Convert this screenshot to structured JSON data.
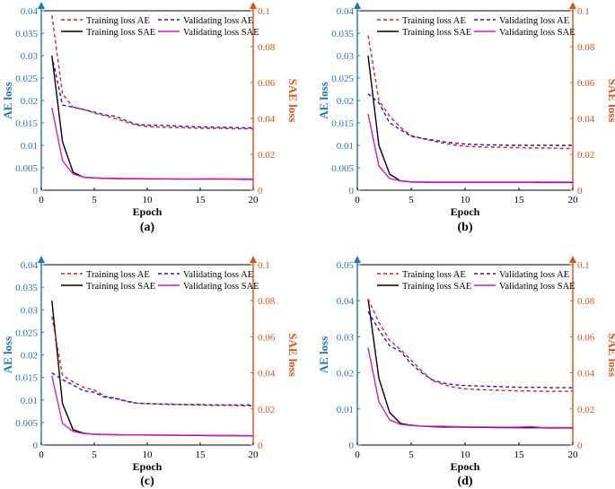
{
  "figure": {
    "colors": {
      "left_axis": "#1f77b4",
      "right_axis": "#d9541a",
      "train_ae": "#e41a1c",
      "val_ae": "#1f1fbf",
      "train_sae": "#000000",
      "val_sae": "#d01ad0"
    },
    "legend": {
      "train_ae": "Training loss AE",
      "val_ae": "Validating loss AE",
      "train_sae": "Training loss SAE",
      "val_sae": "Validating loss SAE"
    }
  },
  "chart_data": [
    {
      "type": "line",
      "caption": "(a)",
      "xlabel": "Epoch",
      "ylabel_left": "AE loss",
      "ylabel_right": "SAE loss",
      "xlim": [
        0,
        20
      ],
      "ylim_left": [
        0,
        0.04
      ],
      "ylim_right": [
        0,
        0.1
      ],
      "xticks": [
        "0",
        "5",
        "10",
        "15",
        "20"
      ],
      "yticks_left": [
        "0",
        "0.005",
        "0.01",
        "0.015",
        "0.02",
        "0.025",
        "0.03",
        "0.035",
        "0.04"
      ],
      "yticks_right": [
        "0",
        "0.02",
        "0.04",
        "0.06",
        "0.08",
        "0.1"
      ],
      "legend_position": "top-right",
      "x": [
        1,
        2,
        3,
        4,
        5,
        6,
        7,
        8,
        9,
        10,
        11,
        12,
        13,
        14,
        15,
        16,
        17,
        18,
        19,
        20
      ],
      "series": [
        {
          "key": "train_ae",
          "axis": "left",
          "dash": true,
          "values": [
            0.039,
            0.0215,
            0.0185,
            0.018,
            0.0172,
            0.0166,
            0.016,
            0.0152,
            0.0145,
            0.0142,
            0.0141,
            0.014,
            0.014,
            0.0139,
            0.0138,
            0.0138,
            0.0138,
            0.0137,
            0.0137,
            0.0137
          ]
        },
        {
          "key": "val_ae",
          "axis": "left",
          "dash": true,
          "values": [
            0.03,
            0.019,
            0.0185,
            0.018,
            0.0174,
            0.0168,
            0.0165,
            0.0155,
            0.0147,
            0.0145,
            0.0145,
            0.0144,
            0.0143,
            0.0142,
            0.0141,
            0.0141,
            0.014,
            0.014,
            0.0139,
            0.0139
          ]
        },
        {
          "key": "train_sae",
          "axis": "right",
          "dash": false,
          "values": [
            0.075,
            0.027,
            0.01,
            0.0072,
            0.0068,
            0.0066,
            0.0065,
            0.0064,
            0.0064,
            0.0063,
            0.0063,
            0.0063,
            0.0062,
            0.0062,
            0.0062,
            0.0062,
            0.0062,
            0.0062,
            0.0061,
            0.0061
          ]
        },
        {
          "key": "val_sae",
          "axis": "right",
          "dash": false,
          "values": [
            0.046,
            0.0165,
            0.009,
            0.0073,
            0.0069,
            0.0067,
            0.0066,
            0.0065,
            0.0065,
            0.0064,
            0.0064,
            0.0063,
            0.0063,
            0.0063,
            0.0063,
            0.0064,
            0.0063,
            0.0063,
            0.0063,
            0.0063
          ]
        }
      ]
    },
    {
      "type": "line",
      "caption": "(b)",
      "xlabel": "Epoch",
      "ylabel_left": "AE loss",
      "ylabel_right": "SAE loss",
      "xlim": [
        0,
        20
      ],
      "ylim_left": [
        0,
        0.04
      ],
      "ylim_right": [
        0,
        0.1
      ],
      "xticks": [
        "0",
        "5",
        "10",
        "15",
        "20"
      ],
      "yticks_left": [
        "0",
        "0.005",
        "0.01",
        "0.015",
        "0.02",
        "0.025",
        "0.03",
        "0.035",
        "0.04"
      ],
      "yticks_right": [
        "0",
        "0.02",
        "0.04",
        "0.06",
        "0.08",
        "0.1"
      ],
      "legend_position": "top-right",
      "x": [
        1,
        2,
        3,
        4,
        5,
        6,
        7,
        8,
        9,
        10,
        11,
        12,
        13,
        14,
        15,
        16,
        17,
        18,
        19,
        20
      ],
      "series": [
        {
          "key": "train_ae",
          "axis": "left",
          "dash": true,
          "values": [
            0.0345,
            0.02,
            0.0165,
            0.014,
            0.0122,
            0.0115,
            0.011,
            0.0105,
            0.0101,
            0.0098,
            0.0097,
            0.0096,
            0.0096,
            0.0095,
            0.0095,
            0.0094,
            0.0094,
            0.0094,
            0.0093,
            0.0093
          ]
        },
        {
          "key": "val_ae",
          "axis": "left",
          "dash": true,
          "values": [
            0.0215,
            0.0195,
            0.015,
            0.0135,
            0.012,
            0.0116,
            0.0112,
            0.0108,
            0.0105,
            0.0103,
            0.0102,
            0.0101,
            0.0101,
            0.01,
            0.01,
            0.01,
            0.01,
            0.01,
            0.01,
            0.01
          ]
        },
        {
          "key": "train_sae",
          "axis": "right",
          "dash": false,
          "values": [
            0.075,
            0.025,
            0.009,
            0.0052,
            0.0046,
            0.0045,
            0.0044,
            0.0044,
            0.0044,
            0.0044,
            0.0044,
            0.0044,
            0.0044,
            0.0044,
            0.0044,
            0.0044,
            0.0043,
            0.0043,
            0.0043,
            0.0043
          ]
        },
        {
          "key": "val_sae",
          "axis": "right",
          "dash": false,
          "values": [
            0.0425,
            0.0135,
            0.0065,
            0.0052,
            0.0047,
            0.0046,
            0.0045,
            0.0045,
            0.0045,
            0.0045,
            0.0045,
            0.0045,
            0.0045,
            0.0045,
            0.0045,
            0.0045,
            0.0045,
            0.0045,
            0.0045,
            0.0045
          ]
        }
      ]
    },
    {
      "type": "line",
      "caption": "(c)",
      "xlabel": "Epoch",
      "ylabel_left": "AE loss",
      "ylabel_right": "SAE loss",
      "xlim": [
        0,
        20
      ],
      "ylim_left": [
        0,
        0.04
      ],
      "ylim_right": [
        0,
        0.1
      ],
      "xticks": [
        "0",
        "5",
        "10",
        "15",
        "20"
      ],
      "yticks_left": [
        "0",
        "0.005",
        "0.01",
        "0.015",
        "0.02",
        "0.025",
        "0.03",
        "0.035",
        "0.04"
      ],
      "yticks_right": [
        "0",
        "0.02",
        "0.04",
        "0.06",
        "0.08",
        "0.1"
      ],
      "legend_position": "top-right",
      "x": [
        1,
        2,
        3,
        4,
        5,
        6,
        7,
        8,
        9,
        10,
        11,
        12,
        13,
        14,
        15,
        16,
        17,
        18,
        19,
        20
      ],
      "series": [
        {
          "key": "train_ae",
          "axis": "left",
          "dash": true,
          "values": [
            0.0285,
            0.0155,
            0.014,
            0.0128,
            0.0122,
            0.0108,
            0.0104,
            0.0098,
            0.0093,
            0.0092,
            0.0091,
            0.009,
            0.009,
            0.0089,
            0.0089,
            0.0088,
            0.0088,
            0.0088,
            0.0087,
            0.0087
          ]
        },
        {
          "key": "val_ae",
          "axis": "left",
          "dash": true,
          "values": [
            0.016,
            0.0145,
            0.0133,
            0.012,
            0.0117,
            0.0106,
            0.0103,
            0.0097,
            0.0093,
            0.0092,
            0.0091,
            0.0091,
            0.009,
            0.009,
            0.009,
            0.0089,
            0.0089,
            0.0089,
            0.0089,
            0.0089
          ]
        },
        {
          "key": "train_sae",
          "axis": "right",
          "dash": false,
          "values": [
            0.08,
            0.023,
            0.0085,
            0.0065,
            0.006,
            0.0058,
            0.0057,
            0.0056,
            0.0056,
            0.0055,
            0.0055,
            0.0054,
            0.0054,
            0.0053,
            0.0053,
            0.0052,
            0.0052,
            0.0052,
            0.0051,
            0.0051
          ]
        },
        {
          "key": "val_sae",
          "axis": "right",
          "dash": false,
          "values": [
            0.0385,
            0.012,
            0.0075,
            0.0063,
            0.006,
            0.0058,
            0.0057,
            0.0056,
            0.0056,
            0.0055,
            0.0055,
            0.0055,
            0.0054,
            0.0054,
            0.0054,
            0.0053,
            0.0053,
            0.0053,
            0.0052,
            0.0052
          ]
        }
      ]
    },
    {
      "type": "line",
      "caption": "(d)",
      "xlabel": "Epoch",
      "ylabel_left": "AE loss",
      "ylabel_right": "SAE loss",
      "xlim": [
        0,
        20
      ],
      "ylim_left": [
        0,
        0.05
      ],
      "ylim_right": [
        0,
        0.1
      ],
      "xticks": [
        "0",
        "5",
        "10",
        "15",
        "20"
      ],
      "yticks_left": [
        "0",
        "0.01",
        "0.02",
        "0.03",
        "0.04",
        "0.05"
      ],
      "yticks_right": [
        "0",
        "0.02",
        "0.04",
        "0.06",
        "0.08",
        "0.1"
      ],
      "legend_position": "top-right",
      "x": [
        1,
        2,
        3,
        4,
        5,
        6,
        7,
        8,
        9,
        10,
        11,
        12,
        13,
        14,
        15,
        16,
        17,
        18,
        19,
        20
      ],
      "series": [
        {
          "key": "train_ae",
          "axis": "left",
          "dash": true,
          "values": [
            0.0405,
            0.034,
            0.029,
            0.0265,
            0.0235,
            0.0205,
            0.0178,
            0.0168,
            0.016,
            0.0156,
            0.0154,
            0.0153,
            0.0152,
            0.0151,
            0.015,
            0.015,
            0.0149,
            0.0149,
            0.0149,
            0.0149
          ]
        },
        {
          "key": "val_ae",
          "axis": "left",
          "dash": true,
          "values": [
            0.037,
            0.032,
            0.0275,
            0.026,
            0.0225,
            0.02,
            0.018,
            0.0172,
            0.0167,
            0.0165,
            0.0164,
            0.0163,
            0.0162,
            0.0161,
            0.016,
            0.016,
            0.016,
            0.0159,
            0.0159,
            0.0159
          ]
        },
        {
          "key": "train_sae",
          "axis": "right",
          "dash": false,
          "values": [
            0.081,
            0.037,
            0.018,
            0.012,
            0.011,
            0.0105,
            0.0102,
            0.01,
            0.01,
            0.0099,
            0.0098,
            0.0098,
            0.0097,
            0.0097,
            0.0096,
            0.0096,
            0.0096,
            0.0095,
            0.0095,
            0.0095
          ]
        },
        {
          "key": "val_sae",
          "axis": "right",
          "dash": false,
          "values": [
            0.054,
            0.024,
            0.014,
            0.0115,
            0.0108,
            0.0105,
            0.0104,
            0.0104,
            0.0102,
            0.0101,
            0.01,
            0.01,
            0.0099,
            0.0099,
            0.0099,
            0.0102,
            0.0098,
            0.0097,
            0.0097,
            0.0097
          ]
        }
      ]
    }
  ]
}
